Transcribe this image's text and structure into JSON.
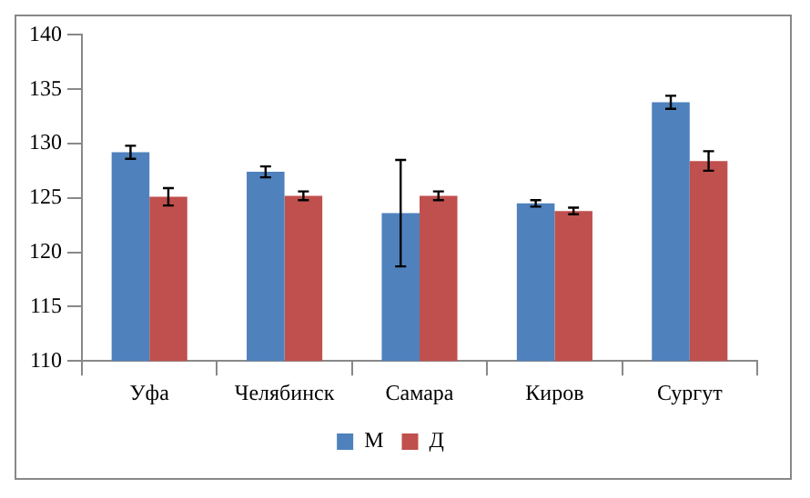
{
  "chart_data": {
    "type": "bar",
    "categories": [
      "Уфа",
      "Челябинск",
      "Самара",
      "Киров",
      "Сургут"
    ],
    "series": [
      {
        "name": "М",
        "color": "#4f81bd",
        "values": [
          129.2,
          127.4,
          123.6,
          124.5,
          133.8
        ],
        "errors": [
          0.6,
          0.5,
          4.9,
          0.3,
          0.6
        ]
      },
      {
        "name": "Д",
        "color": "#c0504d",
        "values": [
          125.1,
          125.2,
          125.2,
          123.8,
          128.4
        ],
        "errors": [
          0.8,
          0.4,
          0.4,
          0.3,
          0.9
        ]
      }
    ],
    "ylim": [
      110,
      140
    ],
    "yticks": [
      110,
      115,
      120,
      125,
      130,
      135,
      140
    ],
    "grid": false,
    "legend": "bottom"
  }
}
